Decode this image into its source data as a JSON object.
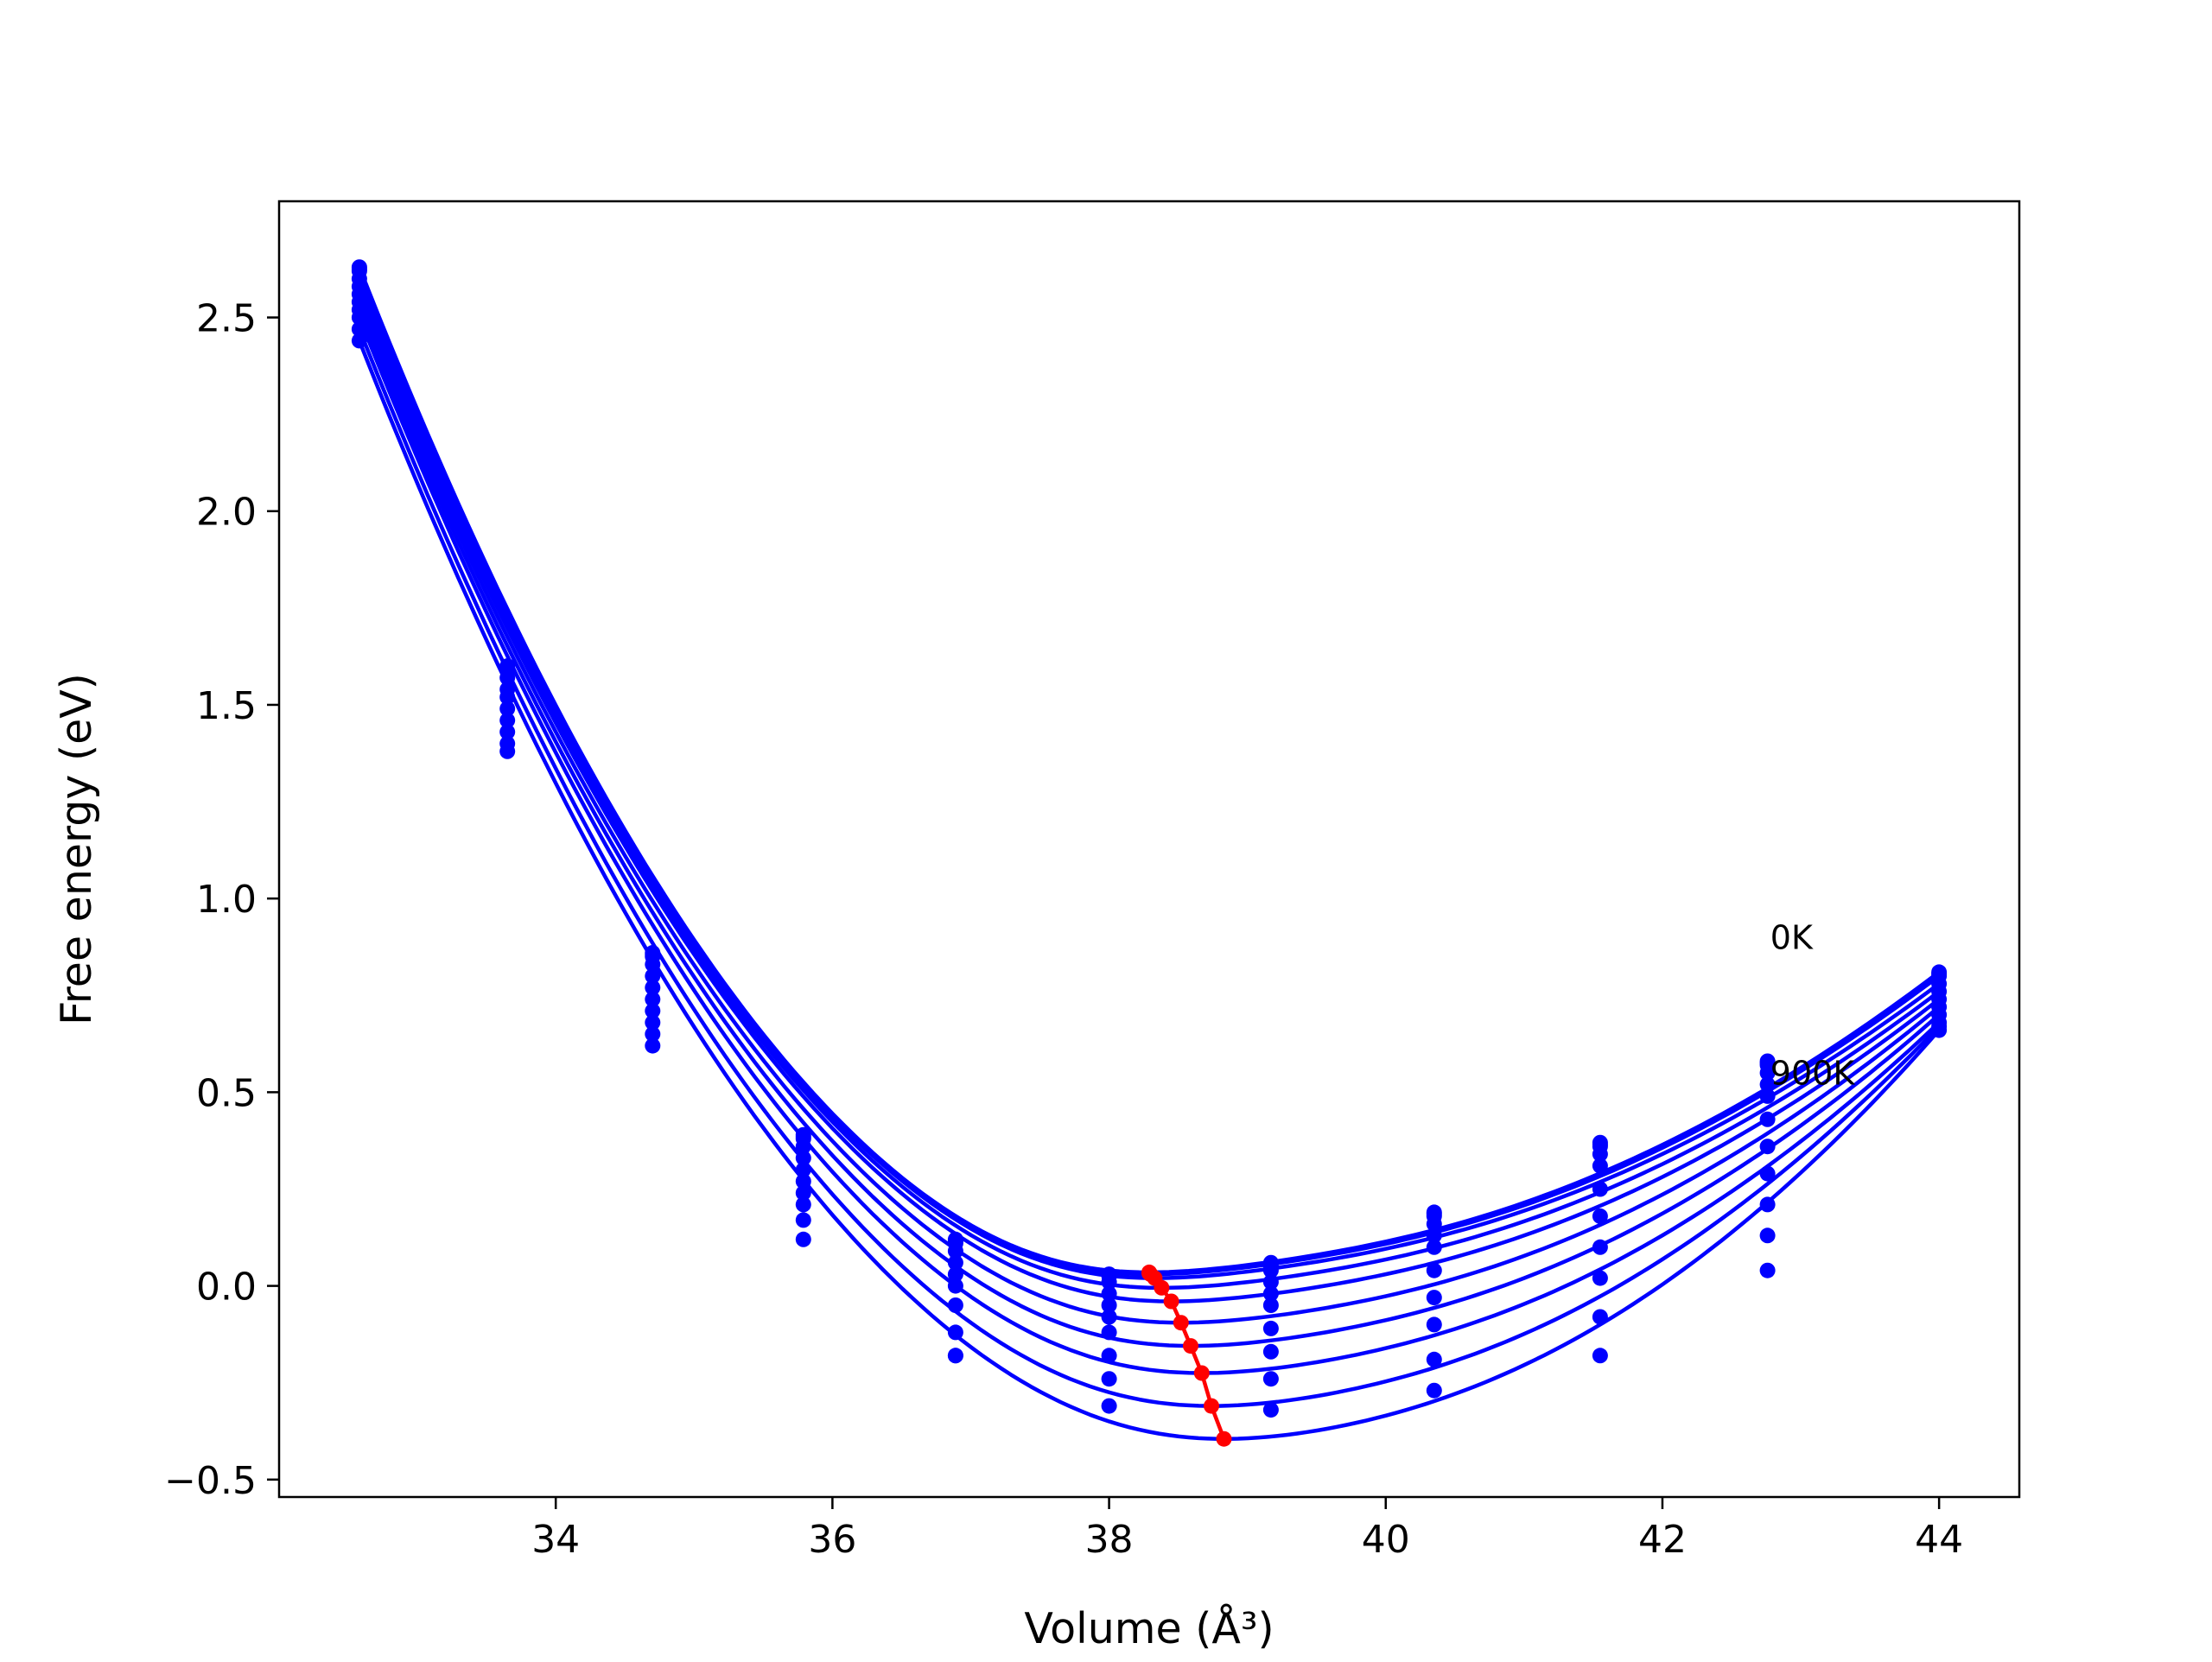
{
  "chart_data": {
    "type": "line",
    "title": "",
    "xlabel": "Volume (Å³)",
    "ylabel": "Free energy (eV)",
    "xlim": [
      32.0,
      44.58
    ],
    "ylim": [
      -0.545,
      2.8
    ],
    "xticks": [
      34,
      36,
      38,
      40,
      42,
      44
    ],
    "yticks": [
      -0.5,
      0.0,
      0.5,
      1.0,
      1.5,
      2.0,
      2.5
    ],
    "xtick_labels": [
      "34",
      "36",
      "38",
      "40",
      "42",
      "44"
    ],
    "ytick_labels": [
      "−0.5",
      "0.0",
      "0.5",
      "1.0",
      "1.5",
      "2.0",
      "2.5"
    ],
    "grid": false,
    "series_color": "#0000ff",
    "min_line_color": "#ff0000",
    "volumes": [
      32.58,
      33.65,
      34.7,
      35.79,
      36.89,
      38.0,
      39.17,
      40.35,
      41.55,
      42.76,
      44.0
    ],
    "series": [
      {
        "label": "0K",
        "v0": 38.29,
        "e0": 0.035,
        "values": [
          2.63,
          1.6,
          0.86,
          0.39,
          0.12,
          0.03,
          0.06,
          0.19,
          0.37,
          0.58,
          0.81
        ]
      },
      {
        "v0": 38.29,
        "e0": 0.033,
        "values": [
          2.625,
          1.595,
          0.855,
          0.385,
          0.115,
          0.03,
          0.055,
          0.185,
          0.365,
          0.575,
          0.805
        ]
      },
      {
        "v0": 38.3,
        "e0": 0.03,
        "values": [
          2.62,
          1.59,
          0.85,
          0.38,
          0.11,
          0.025,
          0.05,
          0.18,
          0.36,
          0.57,
          0.8
        ]
      },
      {
        "v0": 38.33,
        "e0": 0.02,
        "values": [
          2.6,
          1.57,
          0.83,
          0.36,
          0.09,
          0.01,
          0.04,
          0.16,
          0.34,
          0.55,
          0.78
        ]
      },
      {
        "v0": 38.38,
        "e0": -0.005,
        "values": [
          2.58,
          1.54,
          0.8,
          0.33,
          0.06,
          -0.02,
          0.01,
          0.13,
          0.31,
          0.52,
          0.76
        ]
      },
      {
        "v0": 38.45,
        "e0": -0.04,
        "values": [
          2.56,
          1.52,
          0.77,
          0.3,
          0.03,
          -0.05,
          -0.02,
          0.1,
          0.25,
          0.49,
          0.74
        ]
      },
      {
        "v0": 38.52,
        "e0": -0.095,
        "values": [
          2.54,
          1.49,
          0.74,
          0.27,
          0.0,
          -0.08,
          -0.05,
          0.04,
          0.18,
          0.43,
          0.72
        ]
      },
      {
        "v0": 38.59,
        "e0": -0.155,
        "values": [
          2.52,
          1.46,
          0.71,
          0.24,
          -0.05,
          -0.12,
          -0.11,
          -0.03,
          0.1,
          0.36,
          0.7
        ]
      },
      {
        "v0": 38.67,
        "e0": -0.225,
        "values": [
          2.5,
          1.43,
          0.68,
          0.21,
          -0.12,
          -0.18,
          -0.17,
          -0.1,
          0.02,
          0.29,
          0.68
        ]
      },
      {
        "v0": 38.74,
        "e0": -0.31,
        "values": [
          2.47,
          1.4,
          0.65,
          0.17,
          -0.18,
          -0.24,
          -0.24,
          -0.19,
          -0.08,
          0.21,
          0.67
        ]
      },
      {
        "label": "900K",
        "v0": 38.83,
        "e0": -0.395,
        "values": [
          2.44,
          1.38,
          0.62,
          0.12,
          -0.18,
          -0.31,
          -0.32,
          -0.27,
          -0.18,
          0.13,
          0.66
        ]
      }
    ],
    "min_line": {
      "x": [
        38.29,
        38.29,
        38.3,
        38.33,
        38.38,
        38.45,
        38.52,
        38.59,
        38.67,
        38.74,
        38.83
      ],
      "y": [
        0.035,
        0.033,
        0.03,
        0.02,
        -0.005,
        -0.04,
        -0.095,
        -0.155,
        -0.225,
        -0.31,
        -0.395
      ]
    },
    "annotations": [
      {
        "text": "0K",
        "x": 42.78,
        "y": 0.87
      },
      {
        "text": "900K",
        "x": 42.78,
        "y": 0.52
      }
    ],
    "extra_points": [
      {
        "x": 42.76,
        "y": 0.04
      }
    ]
  }
}
